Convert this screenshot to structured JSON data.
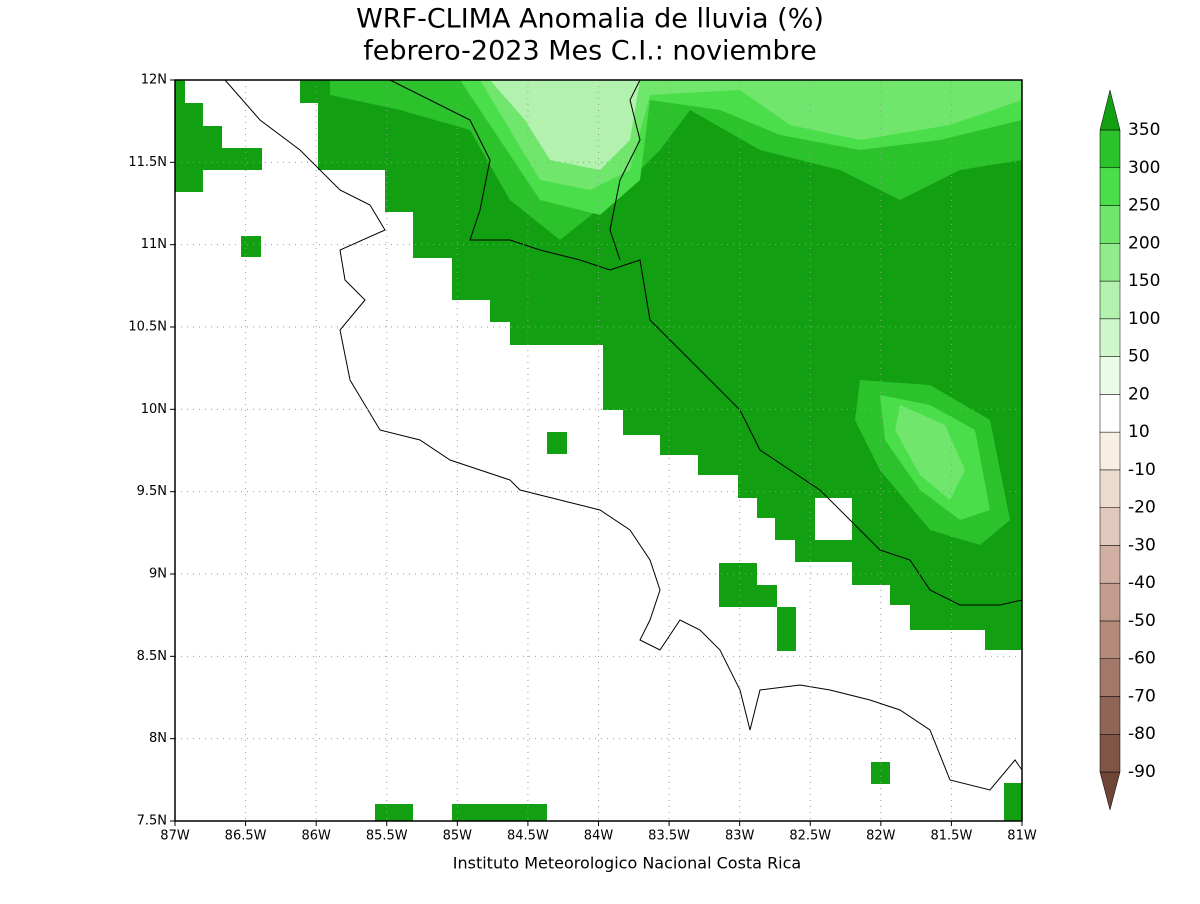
{
  "title": [
    "WRF-CLIMA Anomalia de lluvia (%)",
    "febrero-2023 Mes C.I.: noviembre"
  ],
  "footer": "Instituto Meteorologico Nacional Costa Rica",
  "map": {
    "xlim": [
      -87,
      -81
    ],
    "ylim": [
      7.5,
      12
    ],
    "xticks": [
      {
        "value": -87,
        "label": "87W"
      },
      {
        "value": -86.5,
        "label": "86.5W"
      },
      {
        "value": -86,
        "label": "86W"
      },
      {
        "value": -85.5,
        "label": "85.5W"
      },
      {
        "value": -85,
        "label": "85W"
      },
      {
        "value": -84.5,
        "label": "84.5W"
      },
      {
        "value": -84,
        "label": "84W"
      },
      {
        "value": -83.5,
        "label": "83.5W"
      },
      {
        "value": -83,
        "label": "83W"
      },
      {
        "value": -82.5,
        "label": "82.5W"
      },
      {
        "value": -82,
        "label": "82W"
      },
      {
        "value": -81.5,
        "label": "81.5W"
      },
      {
        "value": -81,
        "label": "81W"
      }
    ],
    "yticks": [
      {
        "value": 7.5,
        "label": "7.5N"
      },
      {
        "value": 8,
        "label": "8N"
      },
      {
        "value": 8.5,
        "label": "8.5N"
      },
      {
        "value": 9,
        "label": "9N"
      },
      {
        "value": 9.5,
        "label": "9.5N"
      },
      {
        "value": 10,
        "label": "10N"
      },
      {
        "value": 10.5,
        "label": "10.5N"
      },
      {
        "value": 11,
        "label": "11N"
      },
      {
        "value": 11.5,
        "label": "11.5N"
      },
      {
        "value": 12,
        "label": "12N"
      }
    ]
  },
  "colorbar": {
    "levels": [
      -90,
      -80,
      -70,
      -60,
      -50,
      -40,
      -30,
      -20,
      -10,
      10,
      20,
      50,
      100,
      150,
      200,
      250,
      300,
      350
    ],
    "colors": [
      "#6e4638",
      "#7f5546",
      "#906556",
      "#a37868",
      "#b48a7b",
      "#c39c8e",
      "#d1b0a3",
      "#e0c8bc",
      "#ecdcd0",
      "#f8efe4",
      "#ffffff",
      "#eafbe6",
      "#d0f6cc",
      "#b2f2ae",
      "#92ec8e",
      "#70e66c",
      "#4ade4a",
      "#2cc22c",
      "#12a012"
    ]
  }
}
